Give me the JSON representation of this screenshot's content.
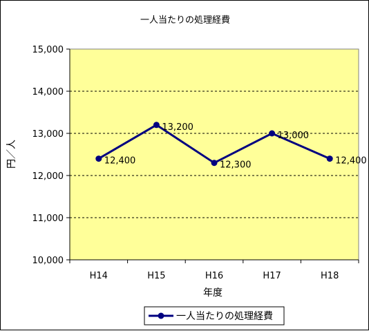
{
  "chart_data": {
    "type": "line",
    "title": "一人当たりの処理経費",
    "xlabel": "年度",
    "ylabel": "円／人",
    "categories": [
      "H14",
      "H15",
      "H16",
      "H17",
      "H18"
    ],
    "series": [
      {
        "name": "一人当たりの処理経費",
        "values": [
          12400,
          13200,
          12300,
          13000,
          12400
        ],
        "data_labels": [
          "12,400",
          "13,200",
          "12,300",
          "13,000",
          "12,400"
        ]
      }
    ],
    "ylim": [
      10000,
      15000
    ],
    "yticks": [
      10000,
      11000,
      12000,
      13000,
      14000,
      15000
    ],
    "ytick_labels": [
      "10,000",
      "11,000",
      "12,000",
      "13,000",
      "14,000",
      "15,000"
    ],
    "grid": "horizontal dashed",
    "legend_position": "bottom",
    "colors": {
      "plot_background": "#FFFF99",
      "series_line": "#000080",
      "grid": "#000000"
    }
  }
}
